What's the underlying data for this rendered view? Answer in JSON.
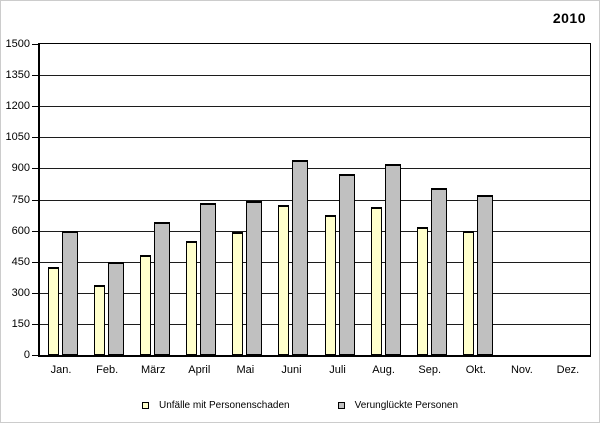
{
  "title": "2010",
  "chart_data": {
    "type": "bar",
    "title": "2010",
    "categories": [
      "Jan.",
      "Feb.",
      "März",
      "April",
      "Mai",
      "Juni",
      "Juli",
      "Aug.",
      "Sep.",
      "Okt.",
      "Nov.",
      "Dez."
    ],
    "series": [
      {
        "name": "Unfälle mit Personenschaden",
        "color": "#ffffcc",
        "values": [
          425,
          340,
          480,
          550,
          595,
          725,
          675,
          715,
          615,
          600,
          null,
          null
        ]
      },
      {
        "name": "Verunglückte Personen",
        "color": "#c0c0c0",
        "values": [
          600,
          450,
          640,
          735,
          745,
          940,
          875,
          920,
          805,
          770,
          null,
          null
        ]
      }
    ],
    "xlabel": "",
    "ylabel": "",
    "ylim": [
      0,
      1500
    ],
    "yticks": [
      0,
      150,
      300,
      450,
      600,
      750,
      900,
      1050,
      1200,
      1350,
      1500
    ],
    "grid": true,
    "legend_position": "bottom"
  },
  "legend": {
    "items": [
      {
        "label": "Unfälle mit Personenschaden",
        "color": "#ffffcc"
      },
      {
        "label": "Verunglückte Personen",
        "color": "#c0c0c0"
      }
    ]
  },
  "colors": {
    "bar_border": "#000000",
    "axis": "#000000",
    "grid": "#1c1c1c",
    "background": "#ffffff"
  }
}
